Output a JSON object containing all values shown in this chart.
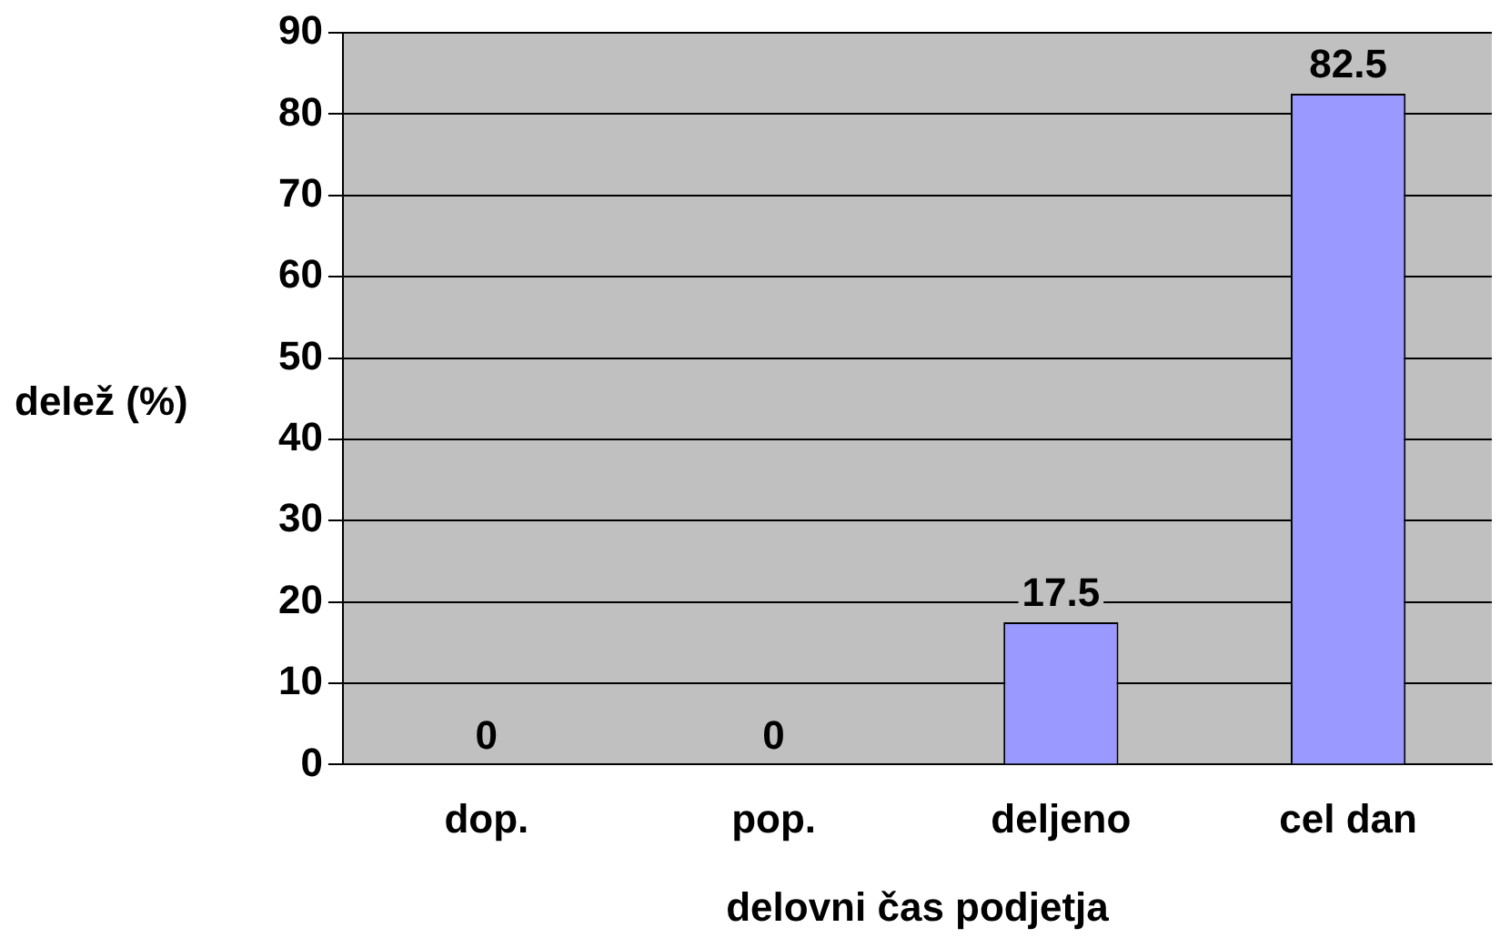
{
  "chart_data": {
    "type": "bar",
    "categories": [
      "dop.",
      "pop.",
      "deljeno",
      "cel dan"
    ],
    "values": [
      0,
      0,
      17.5,
      82.5
    ],
    "color": "#9999ff",
    "xlabel": "delovni čas podjetja",
    "ylabel": "delež (%)",
    "ylim": [
      0,
      90
    ],
    "yticks": [
      0,
      10,
      20,
      30,
      40,
      50,
      60,
      70,
      80,
      90
    ],
    "grid": "y",
    "data_labels": true,
    "legend": false
  }
}
